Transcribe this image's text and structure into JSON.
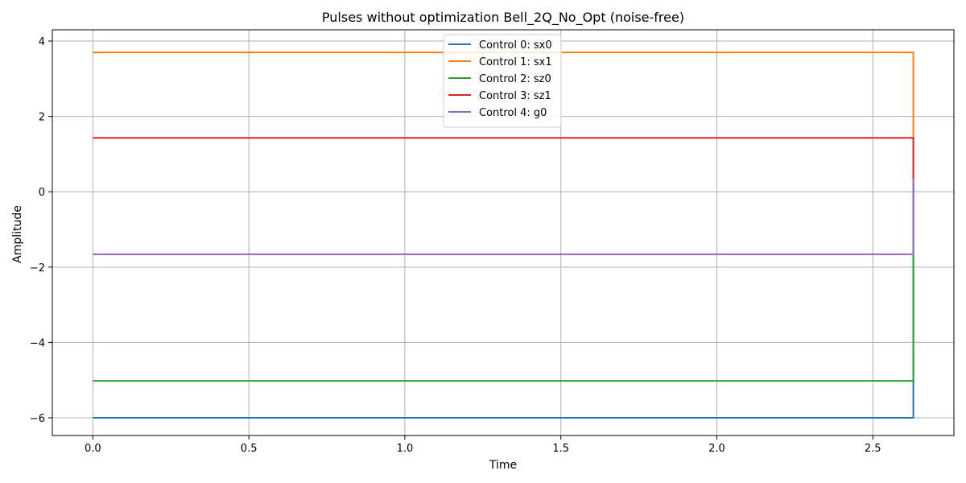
{
  "chart_data": {
    "type": "line",
    "title": "Pulses without optimization Bell_2Q_No_Opt (noise-free)",
    "xlabel": "Time",
    "ylabel": "Amplitude",
    "xlim": [
      -0.13,
      2.76
    ],
    "ylim": [
      -6.47,
      4.3
    ],
    "xticks": [
      0.0,
      0.5,
      1.0,
      1.5,
      2.0,
      2.5
    ],
    "xtick_labels": [
      "0.0",
      "0.5",
      "1.0",
      "1.5",
      "2.0",
      "2.5"
    ],
    "yticks": [
      -6,
      -4,
      -2,
      0,
      2,
      4
    ],
    "ytick_labels": [
      "−6",
      "−4",
      "−2",
      "0",
      "2",
      "4"
    ],
    "grid": true,
    "legend_position": "upper-center",
    "series": [
      {
        "name": "Control 0: sx0",
        "color": "#1f77b4",
        "x": [
          0.0,
          2.63,
          2.63
        ],
        "y": [
          -6.0,
          -6.0,
          0.35
        ]
      },
      {
        "name": "Control 1: sx1",
        "color": "#ff7f0e",
        "x": [
          0.0,
          2.63,
          2.63
        ],
        "y": [
          3.7,
          3.7,
          0.35
        ]
      },
      {
        "name": "Control 2: sz0",
        "color": "#2ca02c",
        "x": [
          0.0,
          2.63,
          2.63
        ],
        "y": [
          -5.02,
          -5.02,
          0.35
        ]
      },
      {
        "name": "Control 3: sz1",
        "color": "#d62728",
        "x": [
          0.0,
          2.63,
          2.63
        ],
        "y": [
          1.43,
          1.43,
          0.35
        ]
      },
      {
        "name": "Control 4: g0",
        "color": "#9467bd",
        "x": [
          0.0,
          2.63,
          2.63
        ],
        "y": [
          -1.66,
          -1.66,
          0.35
        ]
      }
    ]
  }
}
